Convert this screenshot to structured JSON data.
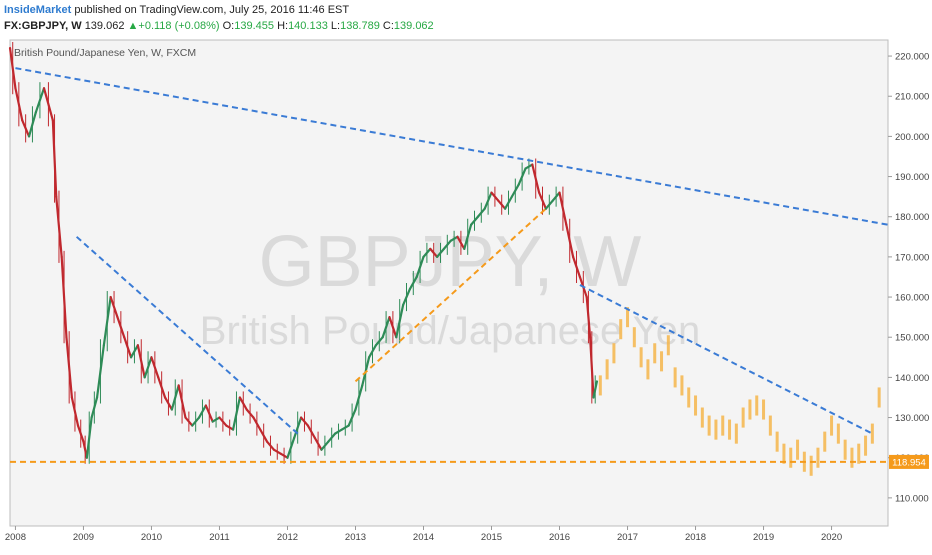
{
  "header": {
    "publisher": "InsideMarket",
    "published_text": "published on TradingView.com, July 25, 2016 11:46 EST",
    "symbol": "FX:GBPJPY, W",
    "last": "139.062",
    "change_arrow": "▲",
    "change": "+0.118 (+0.08%)",
    "o_label": "O:",
    "o_value": "139.455",
    "h_label": "H:",
    "h_value": "140.133",
    "l_label": "L:",
    "l_value": "138.789",
    "c_label": "C:",
    "c_value": "139.062"
  },
  "chart_data": {
    "type": "line",
    "title": "British Pound/Japanese Yen, W, FXCM",
    "watermark": "GBPJPY, W",
    "watermark_sub": "British Pound/Japanese Yen",
    "x_ticks": [
      "2008",
      "2009",
      "2010",
      "2011",
      "2012",
      "2013",
      "2014",
      "2015",
      "2016",
      "2017",
      "2018",
      "2019",
      "2020"
    ],
    "y_ticks": [
      "110.000",
      "120.000",
      "130.000",
      "140.000",
      "150.000",
      "160.000",
      "170.000",
      "180.000",
      "190.000",
      "200.000",
      "210.000",
      "220.000"
    ],
    "ylim": [
      103,
      224
    ],
    "xlim": [
      2007.92,
      2020.83
    ],
    "price_label": "118.954",
    "horizontal_level": 118.954,
    "series": [
      {
        "style": "price",
        "x": [
          2007.92,
          2008.0,
          2008.1,
          2008.2,
          2008.3,
          2008.42,
          2008.55,
          2008.6,
          2008.68,
          2008.75,
          2008.83,
          2008.92,
          2009.0,
          2009.05,
          2009.12,
          2009.2,
          2009.3,
          2009.4,
          2009.5,
          2009.6,
          2009.7,
          2009.8,
          2009.9,
          2010.0,
          2010.1,
          2010.2,
          2010.3,
          2010.4,
          2010.5,
          2010.6,
          2010.7,
          2010.8,
          2010.9,
          2011.0,
          2011.1,
          2011.2,
          2011.3,
          2011.4,
          2011.5,
          2011.6,
          2011.7,
          2011.8,
          2011.9,
          2012.0,
          2012.1,
          2012.2,
          2012.3,
          2012.4,
          2012.5,
          2012.6,
          2012.7,
          2012.8,
          2012.9,
          2013.0,
          2013.1,
          2013.2,
          2013.3,
          2013.4,
          2013.5,
          2013.6,
          2013.7,
          2013.8,
          2013.9,
          2014.0,
          2014.1,
          2014.2,
          2014.3,
          2014.4,
          2014.5,
          2014.6,
          2014.7,
          2014.8,
          2014.9,
          2015.0,
          2015.1,
          2015.2,
          2015.3,
          2015.4,
          2015.5,
          2015.6,
          2015.7,
          2015.8,
          2015.9,
          2016.0,
          2016.1,
          2016.2,
          2016.3,
          2016.4,
          2016.45,
          2016.5,
          2016.55
        ],
        "y": [
          222,
          212,
          204,
          200,
          206,
          212,
          204,
          185,
          170,
          150,
          135,
          128,
          124,
          120,
          130,
          135,
          148,
          160,
          155,
          150,
          145,
          148,
          140,
          145,
          140,
          135,
          132,
          138,
          130,
          128,
          130,
          133,
          129,
          130,
          128,
          127,
          135,
          132,
          130,
          127,
          124,
          122,
          121,
          120,
          125,
          130,
          128,
          125,
          122,
          124,
          126,
          127,
          128,
          132,
          138,
          145,
          148,
          150,
          155,
          150,
          158,
          162,
          165,
          170,
          172,
          170,
          172,
          174,
          175,
          172,
          178,
          180,
          182,
          186,
          184,
          182,
          185,
          188,
          192,
          193,
          186,
          182,
          184,
          186,
          178,
          170,
          165,
          160,
          150,
          135,
          139
        ]
      },
      {
        "style": "projection",
        "x": [
          2016.6,
          2016.7,
          2016.8,
          2016.9,
          2017.0,
          2017.1,
          2017.2,
          2017.3,
          2017.4,
          2017.5,
          2017.6,
          2017.7,
          2017.8,
          2017.9,
          2018.0,
          2018.1,
          2018.2,
          2018.3,
          2018.4,
          2018.5,
          2018.6,
          2018.7,
          2018.8,
          2018.9,
          2019.0,
          2019.1,
          2019.2,
          2019.3,
          2019.4,
          2019.5,
          2019.6,
          2019.7,
          2019.8,
          2019.9,
          2020.0,
          2020.1,
          2020.2,
          2020.3,
          2020.4,
          2020.5,
          2020.6,
          2020.7
        ],
        "y": [
          138,
          142,
          146,
          152,
          155,
          150,
          145,
          142,
          146,
          144,
          148,
          140,
          138,
          135,
          133,
          130,
          128,
          127,
          128,
          127,
          126,
          130,
          132,
          133,
          132,
          128,
          124,
          121,
          120,
          122,
          119,
          118,
          120,
          124,
          128,
          126,
          122,
          120,
          121,
          123,
          126,
          135
        ]
      }
    ],
    "lines": [
      {
        "style": "blue-dashed",
        "x": [
          2008.0,
          2020.83
        ],
        "y": [
          217,
          178
        ]
      },
      {
        "style": "blue-dashed",
        "x": [
          2008.9,
          2012.15
        ],
        "y": [
          175,
          126
        ]
      },
      {
        "style": "blue-dashed",
        "x": [
          2016.3,
          2020.6
        ],
        "y": [
          163,
          126
        ]
      },
      {
        "style": "orange-dashed",
        "x": [
          2013.0,
          2015.8
        ],
        "y": [
          139,
          182
        ]
      },
      {
        "style": "orange-dashed",
        "x": [
          2007.92,
          2020.83
        ],
        "y": [
          118.954,
          118.954
        ]
      }
    ],
    "colors": {
      "background": "#f4f4f4",
      "up": "#2e8b57",
      "down": "#c0282e",
      "projection": "#f5b54a",
      "trend_blue": "#3a7bd5",
      "trend_orange": "#f59a1b",
      "watermark": "#d9d9d9",
      "axis_text": "#444444"
    },
    "grid": false,
    "legend": "none"
  }
}
